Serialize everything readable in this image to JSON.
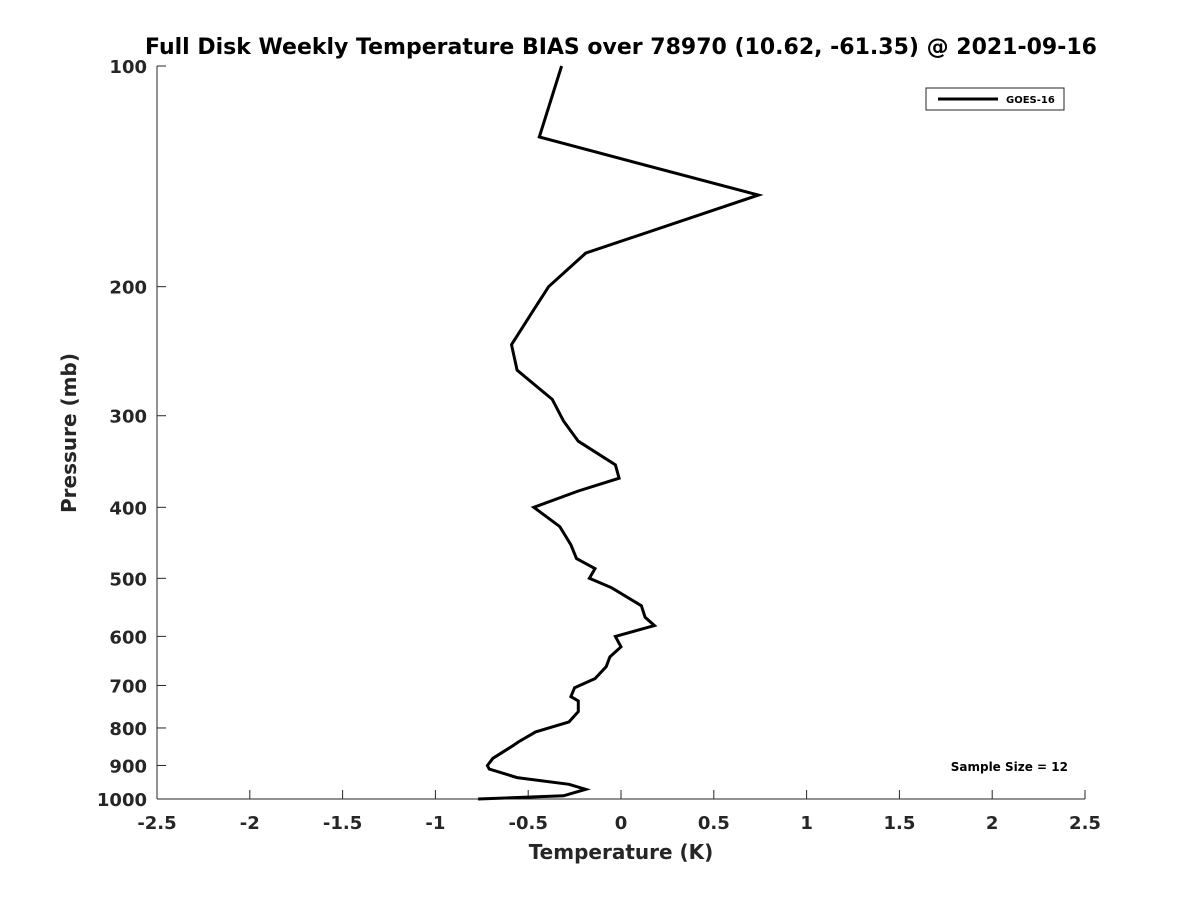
{
  "chart_data": {
    "type": "line",
    "title": "Full Disk Weekly Temperature BIAS over 78970 (10.62, -61.35) @ 2021-09-16",
    "xlabel": "Temperature (K)",
    "ylabel": "Pressure (mb)",
    "xlim": [
      -2.5,
      2.5
    ],
    "ylim": [
      100,
      1000
    ],
    "yscale": "log",
    "yreversed": true,
    "grid": false,
    "x_ticks": [
      -2.5,
      -2,
      -1.5,
      -1,
      -0.5,
      0,
      0.5,
      1,
      1.5,
      2,
      2.5
    ],
    "x_tick_labels": [
      "-2.5",
      "-2",
      "-1.5",
      "-1",
      "-0.5",
      "0",
      "0.5",
      "1",
      "1.5",
      "2",
      "2.5"
    ],
    "y_ticks": [
      100,
      200,
      300,
      400,
      500,
      600,
      700,
      800,
      900,
      1000
    ],
    "y_tick_labels": [
      "100",
      "200",
      "300",
      "400",
      "500",
      "600",
      "700",
      "800",
      "900",
      "1000"
    ],
    "legend": {
      "location": "top-right",
      "entries": [
        "GOES-16"
      ]
    },
    "annotation": "Sample Size = 12",
    "series": [
      {
        "name": "GOES-16",
        "color": "#000000",
        "points": [
          {
            "x": -0.32,
            "p": 100
          },
          {
            "x": -0.44,
            "p": 125
          },
          {
            "x": 0.74,
            "p": 150
          },
          {
            "x": -0.19,
            "p": 180
          },
          {
            "x": -0.39,
            "p": 200
          },
          {
            "x": -0.47,
            "p": 215
          },
          {
            "x": -0.59,
            "p": 240
          },
          {
            "x": -0.56,
            "p": 260
          },
          {
            "x": -0.37,
            "p": 285
          },
          {
            "x": -0.31,
            "p": 305
          },
          {
            "x": -0.23,
            "p": 325
          },
          {
            "x": -0.03,
            "p": 350
          },
          {
            "x": -0.01,
            "p": 365
          },
          {
            "x": -0.23,
            "p": 380
          },
          {
            "x": -0.47,
            "p": 400
          },
          {
            "x": -0.33,
            "p": 425
          },
          {
            "x": -0.27,
            "p": 450
          },
          {
            "x": -0.24,
            "p": 470
          },
          {
            "x": -0.14,
            "p": 485
          },
          {
            "x": -0.17,
            "p": 500
          },
          {
            "x": -0.05,
            "p": 515
          },
          {
            "x": 0.11,
            "p": 545
          },
          {
            "x": 0.13,
            "p": 565
          },
          {
            "x": 0.18,
            "p": 580
          },
          {
            "x": -0.03,
            "p": 600
          },
          {
            "x": 0.0,
            "p": 620
          },
          {
            "x": -0.06,
            "p": 640
          },
          {
            "x": -0.08,
            "p": 660
          },
          {
            "x": -0.14,
            "p": 685
          },
          {
            "x": -0.25,
            "p": 705
          },
          {
            "x": -0.27,
            "p": 725
          },
          {
            "x": -0.23,
            "p": 735
          },
          {
            "x": -0.23,
            "p": 760
          },
          {
            "x": -0.28,
            "p": 785
          },
          {
            "x": -0.46,
            "p": 810
          },
          {
            "x": -0.55,
            "p": 835
          },
          {
            "x": -0.58,
            "p": 845
          },
          {
            "x": -0.69,
            "p": 880
          },
          {
            "x": -0.72,
            "p": 900
          },
          {
            "x": -0.71,
            "p": 910
          },
          {
            "x": -0.56,
            "p": 935
          },
          {
            "x": -0.28,
            "p": 955
          },
          {
            "x": -0.19,
            "p": 970
          },
          {
            "x": -0.31,
            "p": 990
          },
          {
            "x": -0.77,
            "p": 1000
          }
        ]
      }
    ]
  }
}
